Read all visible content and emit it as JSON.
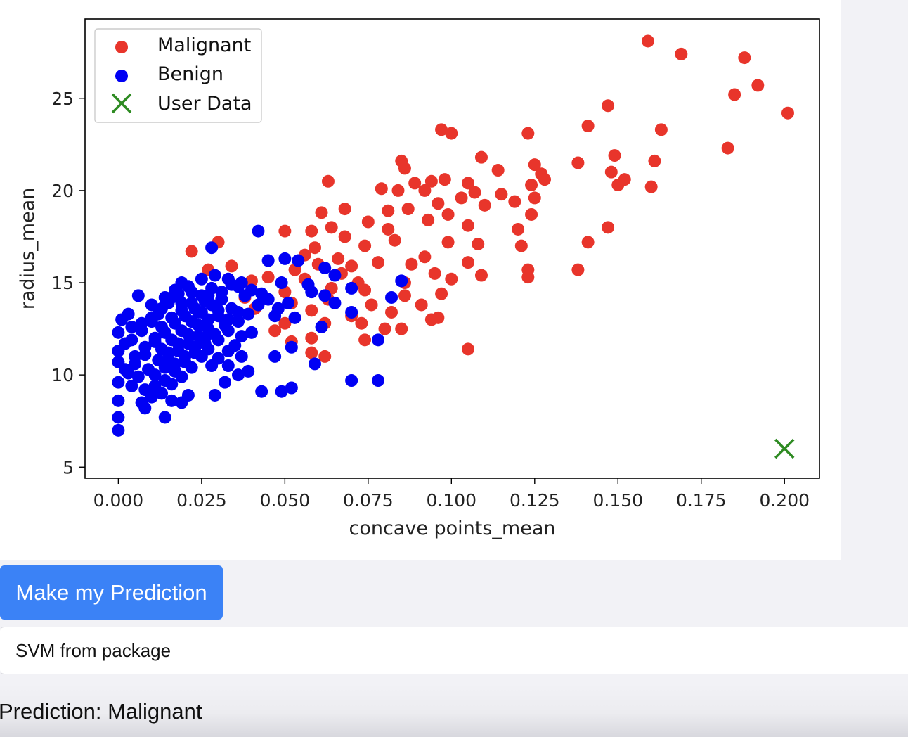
{
  "chart_data": {
    "type": "scatter",
    "xlabel": "concave points_mean",
    "ylabel": "radius_mean",
    "xlim": [
      -0.01,
      0.2105
    ],
    "ylim": [
      4.4,
      29.3
    ],
    "xticks": [
      0.0,
      0.025,
      0.05,
      0.075,
      0.1,
      0.125,
      0.15,
      0.175,
      0.2
    ],
    "xtick_labels": [
      "0.000",
      "0.025",
      "0.050",
      "0.075",
      "0.100",
      "0.125",
      "0.150",
      "0.175",
      "0.200"
    ],
    "yticks": [
      5,
      10,
      15,
      20,
      25
    ],
    "ytick_labels": [
      "5",
      "10",
      "15",
      "20",
      "25"
    ],
    "legend_position": "top-left",
    "grid": false,
    "series": [
      {
        "name": "Malignant",
        "color": "#e8352b",
        "marker": "circle",
        "points": [
          [
            0.159,
            28.1
          ],
          [
            0.169,
            27.4
          ],
          [
            0.188,
            27.2
          ],
          [
            0.192,
            25.7
          ],
          [
            0.185,
            25.2
          ],
          [
            0.201,
            24.2
          ],
          [
            0.147,
            24.6
          ],
          [
            0.141,
            23.5
          ],
          [
            0.163,
            23.3
          ],
          [
            0.097,
            23.3
          ],
          [
            0.1,
            23.1
          ],
          [
            0.123,
            23.1
          ],
          [
            0.183,
            22.3
          ],
          [
            0.149,
            21.9
          ],
          [
            0.109,
            21.8
          ],
          [
            0.161,
            21.6
          ],
          [
            0.138,
            21.5
          ],
          [
            0.085,
            21.6
          ],
          [
            0.125,
            21.4
          ],
          [
            0.114,
            21.1
          ],
          [
            0.086,
            21.2
          ],
          [
            0.148,
            21.0
          ],
          [
            0.127,
            20.9
          ],
          [
            0.152,
            20.6
          ],
          [
            0.128,
            20.6
          ],
          [
            0.063,
            20.5
          ],
          [
            0.105,
            20.4
          ],
          [
            0.15,
            20.3
          ],
          [
            0.094,
            20.5
          ],
          [
            0.098,
            20.6
          ],
          [
            0.124,
            20.3
          ],
          [
            0.084,
            20.0
          ],
          [
            0.089,
            20.4
          ],
          [
            0.16,
            20.2
          ],
          [
            0.079,
            20.1
          ],
          [
            0.092,
            20.0
          ],
          [
            0.107,
            19.9
          ],
          [
            0.115,
            19.8
          ],
          [
            0.125,
            19.6
          ],
          [
            0.103,
            19.6
          ],
          [
            0.096,
            19.3
          ],
          [
            0.087,
            19.0
          ],
          [
            0.068,
            19.0
          ],
          [
            0.119,
            19.4
          ],
          [
            0.11,
            19.2
          ],
          [
            0.081,
            18.9
          ],
          [
            0.061,
            18.8
          ],
          [
            0.099,
            18.7
          ],
          [
            0.147,
            18.0
          ],
          [
            0.124,
            18.7
          ],
          [
            0.093,
            18.4
          ],
          [
            0.075,
            18.3
          ],
          [
            0.064,
            18.0
          ],
          [
            0.105,
            18.1
          ],
          [
            0.081,
            17.9
          ],
          [
            0.12,
            17.9
          ],
          [
            0.05,
            17.8
          ],
          [
            0.058,
            17.8
          ],
          [
            0.068,
            17.5
          ],
          [
            0.083,
            17.3
          ],
          [
            0.099,
            17.2
          ],
          [
            0.141,
            17.2
          ],
          [
            0.121,
            17.0
          ],
          [
            0.108,
            17.1
          ],
          [
            0.074,
            17.0
          ],
          [
            0.059,
            16.9
          ],
          [
            0.022,
            16.7
          ],
          [
            0.056,
            16.5
          ],
          [
            0.066,
            16.3
          ],
          [
            0.078,
            16.1
          ],
          [
            0.088,
            16.0
          ],
          [
            0.092,
            16.4
          ],
          [
            0.105,
            16.1
          ],
          [
            0.06,
            16.0
          ],
          [
            0.034,
            15.9
          ],
          [
            0.07,
            15.9
          ],
          [
            0.053,
            15.7
          ],
          [
            0.067,
            15.5
          ],
          [
            0.095,
            15.5
          ],
          [
            0.123,
            15.7
          ],
          [
            0.138,
            15.7
          ],
          [
            0.109,
            15.4
          ],
          [
            0.04,
            15.1
          ],
          [
            0.056,
            15.2
          ],
          [
            0.072,
            15.0
          ],
          [
            0.086,
            15.0
          ],
          [
            0.1,
            15.2
          ],
          [
            0.123,
            15.3
          ],
          [
            0.064,
            14.7
          ],
          [
            0.05,
            14.5
          ],
          [
            0.074,
            14.6
          ],
          [
            0.086,
            14.3
          ],
          [
            0.097,
            14.4
          ],
          [
            0.063,
            14.1
          ],
          [
            0.052,
            13.9
          ],
          [
            0.076,
            13.8
          ],
          [
            0.091,
            13.8
          ],
          [
            0.058,
            13.5
          ],
          [
            0.082,
            13.4
          ],
          [
            0.07,
            13.2
          ],
          [
            0.073,
            12.8
          ],
          [
            0.094,
            13.0
          ],
          [
            0.096,
            13.1
          ],
          [
            0.062,
            12.8
          ],
          [
            0.05,
            12.8
          ],
          [
            0.08,
            12.5
          ],
          [
            0.085,
            12.5
          ],
          [
            0.047,
            12.4
          ],
          [
            0.058,
            12.0
          ],
          [
            0.052,
            11.8
          ],
          [
            0.074,
            11.9
          ],
          [
            0.105,
            11.4
          ],
          [
            0.062,
            11.0
          ],
          [
            0.058,
            11.2
          ],
          [
            0.03,
            17.2
          ],
          [
            0.027,
            15.7
          ],
          [
            0.045,
            15.3
          ],
          [
            0.038,
            14.2
          ],
          [
            0.041,
            13.6
          ]
        ]
      },
      {
        "name": "Benign",
        "color": "#0000f4",
        "marker": "circle",
        "points": [
          [
            0.042,
            17.8
          ],
          [
            0.028,
            16.9
          ],
          [
            0.05,
            16.3
          ],
          [
            0.045,
            16.2
          ],
          [
            0.054,
            16.2
          ],
          [
            0.062,
            15.8
          ],
          [
            0.065,
            15.4
          ],
          [
            0.085,
            15.1
          ],
          [
            0.049,
            15.0
          ],
          [
            0.057,
            14.9
          ],
          [
            0.07,
            14.7
          ],
          [
            0.058,
            14.5
          ],
          [
            0.062,
            14.3
          ],
          [
            0.082,
            14.2
          ],
          [
            0.065,
            13.9
          ],
          [
            0.07,
            13.4
          ],
          [
            0.053,
            13.1
          ],
          [
            0.047,
            13.2
          ],
          [
            0.061,
            12.6
          ],
          [
            0.078,
            11.9
          ],
          [
            0.052,
            11.5
          ],
          [
            0.047,
            11.0
          ],
          [
            0.059,
            10.6
          ],
          [
            0.07,
            9.7
          ],
          [
            0.078,
            9.7
          ],
          [
            0.052,
            9.3
          ],
          [
            0.049,
            9.1
          ],
          [
            0.043,
            9.1
          ],
          [
            0.039,
            10.2
          ],
          [
            0.037,
            11.0
          ],
          [
            0.033,
            11.3
          ],
          [
            0.029,
            8.9
          ],
          [
            0.021,
            8.9
          ],
          [
            0.019,
            8.5
          ],
          [
            0.016,
            8.6
          ],
          [
            0.014,
            7.7
          ],
          [
            0.008,
            8.2
          ],
          [
            0.007,
            8.5
          ],
          [
            0.0,
            7.0
          ],
          [
            0.0,
            7.7
          ],
          [
            0.0,
            8.6
          ],
          [
            0.0,
            9.6
          ],
          [
            0.0,
            10.7
          ],
          [
            0.0,
            11.3
          ],
          [
            0.0,
            12.3
          ],
          [
            0.001,
            13.0
          ],
          [
            0.003,
            13.3
          ],
          [
            0.004,
            12.6
          ],
          [
            0.006,
            14.3
          ],
          [
            0.01,
            13.8
          ],
          [
            0.014,
            14.2
          ],
          [
            0.017,
            14.6
          ],
          [
            0.019,
            15.0
          ],
          [
            0.025,
            15.2
          ],
          [
            0.029,
            15.4
          ],
          [
            0.033,
            15.2
          ],
          [
            0.036,
            14.8
          ],
          [
            0.038,
            14.3
          ],
          [
            0.03,
            13.5
          ],
          [
            0.027,
            13.0
          ],
          [
            0.024,
            12.7
          ],
          [
            0.021,
            12.2
          ],
          [
            0.018,
            11.7
          ],
          [
            0.015,
            11.2
          ],
          [
            0.012,
            10.8
          ],
          [
            0.009,
            10.3
          ],
          [
            0.006,
            9.9
          ],
          [
            0.003,
            10.1
          ],
          [
            0.002,
            11.7
          ],
          [
            0.005,
            11.0
          ],
          [
            0.008,
            11.5
          ],
          [
            0.011,
            12.0
          ],
          [
            0.013,
            12.6
          ],
          [
            0.016,
            13.1
          ],
          [
            0.019,
            13.5
          ],
          [
            0.022,
            13.9
          ],
          [
            0.025,
            14.3
          ],
          [
            0.028,
            14.7
          ],
          [
            0.031,
            14.1
          ],
          [
            0.034,
            13.6
          ],
          [
            0.032,
            12.7
          ],
          [
            0.029,
            12.2
          ],
          [
            0.026,
            11.7
          ],
          [
            0.023,
            11.2
          ],
          [
            0.02,
            10.7
          ],
          [
            0.017,
            10.2
          ],
          [
            0.014,
            9.7
          ],
          [
            0.011,
            9.4
          ],
          [
            0.008,
            9.2
          ],
          [
            0.012,
            13.3
          ],
          [
            0.015,
            13.9
          ],
          [
            0.018,
            14.4
          ],
          [
            0.021,
            14.8
          ],
          [
            0.024,
            13.4
          ],
          [
            0.027,
            12.5
          ],
          [
            0.03,
            11.9
          ],
          [
            0.033,
            12.4
          ],
          [
            0.036,
            12.9
          ],
          [
            0.039,
            13.3
          ],
          [
            0.042,
            13.8
          ],
          [
            0.045,
            14.1
          ],
          [
            0.048,
            13.6
          ],
          [
            0.051,
            13.9
          ],
          [
            0.04,
            12.3
          ],
          [
            0.035,
            11.6
          ],
          [
            0.037,
            12.1
          ],
          [
            0.025,
            11.0
          ],
          [
            0.022,
            10.4
          ],
          [
            0.019,
            9.9
          ],
          [
            0.016,
            9.5
          ],
          [
            0.013,
            9.0
          ],
          [
            0.01,
            8.8
          ],
          [
            0.004,
            9.4
          ],
          [
            0.007,
            12.4
          ],
          [
            0.01,
            12.9
          ],
          [
            0.013,
            11.4
          ],
          [
            0.016,
            11.9
          ],
          [
            0.019,
            12.4
          ],
          [
            0.022,
            12.9
          ],
          [
            0.025,
            13.4
          ],
          [
            0.028,
            13.8
          ],
          [
            0.031,
            14.5
          ],
          [
            0.034,
            14.9
          ],
          [
            0.037,
            15.0
          ],
          [
            0.04,
            14.6
          ],
          [
            0.043,
            14.4
          ],
          [
            0.026,
            14.0
          ],
          [
            0.023,
            13.6
          ],
          [
            0.02,
            13.2
          ],
          [
            0.017,
            12.8
          ],
          [
            0.014,
            12.3
          ],
          [
            0.011,
            11.8
          ],
          [
            0.008,
            11.1
          ],
          [
            0.005,
            10.6
          ],
          [
            0.002,
            10.3
          ],
          [
            0.015,
            10.8
          ],
          [
            0.018,
            11.3
          ],
          [
            0.021,
            11.7
          ],
          [
            0.024,
            12.1
          ],
          [
            0.027,
            11.4
          ],
          [
            0.03,
            10.9
          ],
          [
            0.033,
            10.5
          ],
          [
            0.036,
            10.0
          ],
          [
            0.028,
            10.5
          ],
          [
            0.032,
            9.6
          ],
          [
            0.03,
            13.2
          ],
          [
            0.033,
            13.0
          ],
          [
            0.036,
            13.4
          ],
          [
            0.027,
            14.3
          ],
          [
            0.022,
            14.5
          ],
          [
            0.019,
            13.9
          ],
          [
            0.016,
            14.2
          ],
          [
            0.013,
            13.6
          ],
          [
            0.01,
            13.1
          ],
          [
            0.007,
            12.8
          ],
          [
            0.004,
            11.9
          ],
          [
            0.011,
            10.0
          ],
          [
            0.014,
            10.4
          ],
          [
            0.017,
            10.6
          ],
          [
            0.02,
            11.0
          ],
          [
            0.023,
            11.5
          ],
          [
            0.026,
            12.0
          ]
        ]
      },
      {
        "name": "User Data",
        "color": "#2e8b22",
        "marker": "x",
        "points": [
          [
            0.2,
            6.0
          ]
        ]
      }
    ]
  },
  "controls": {
    "predict_button_label": "Make my Prediction",
    "model_option": "SVM from package"
  },
  "result": {
    "prediction_text": "Prediction: Malignant"
  }
}
